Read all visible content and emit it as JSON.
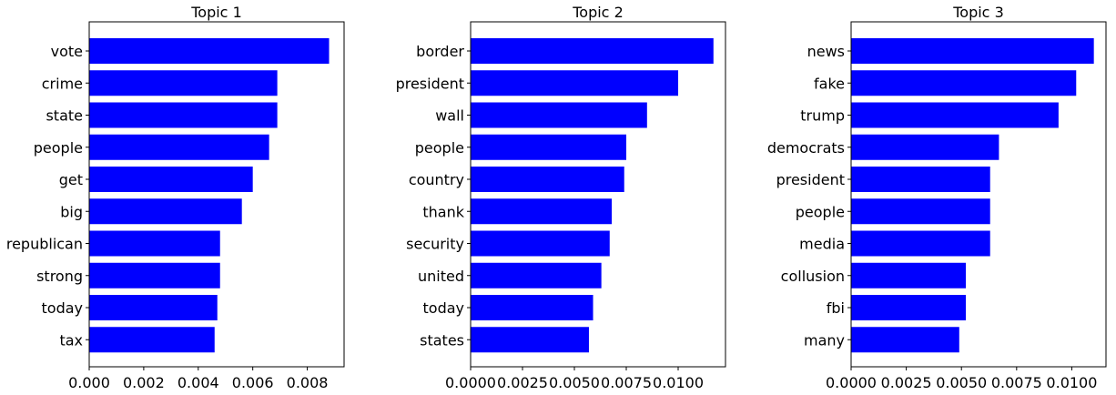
{
  "chart_data": [
    {
      "type": "bar",
      "orientation": "horizontal",
      "title": "Topic 1",
      "categories": [
        "vote",
        "crime",
        "state",
        "people",
        "get",
        "big",
        "republican",
        "strong",
        "today",
        "tax"
      ],
      "values": [
        0.0088,
        0.0069,
        0.0069,
        0.0066,
        0.006,
        0.0056,
        0.0048,
        0.0048,
        0.0047,
        0.0046
      ],
      "xlim": [
        0,
        0.00935
      ],
      "xticks": [
        0,
        0.002,
        0.004,
        0.006,
        0.008
      ],
      "xtick_labels": [
        "0.000",
        "0.002",
        "0.004",
        "0.006",
        "0.008"
      ],
      "bar_color": "#0000ff",
      "grid": false
    },
    {
      "type": "bar",
      "orientation": "horizontal",
      "title": "Topic 2",
      "categories": [
        "border",
        "president",
        "wall",
        "people",
        "country",
        "thank",
        "security",
        "united",
        "today",
        "states"
      ],
      "values": [
        0.0117,
        0.01,
        0.0085,
        0.0075,
        0.0074,
        0.0068,
        0.0067,
        0.0063,
        0.0059,
        0.0057
      ],
      "xlim": [
        0,
        0.01228
      ],
      "xticks": [
        0,
        0.0025,
        0.005,
        0.0075,
        0.01
      ],
      "xtick_labels": [
        "0.0000",
        "0.0025",
        "0.0050",
        "0.0075",
        "0.0100"
      ],
      "bar_color": "#0000ff",
      "grid": false
    },
    {
      "type": "bar",
      "orientation": "horizontal",
      "title": "Topic 3",
      "categories": [
        "news",
        "fake",
        "trump",
        "democrats",
        "president",
        "people",
        "media",
        "collusion",
        "fbi",
        "many"
      ],
      "values": [
        0.011,
        0.0102,
        0.0094,
        0.0067,
        0.0063,
        0.0063,
        0.0063,
        0.0052,
        0.0052,
        0.0049
      ],
      "xlim": [
        0,
        0.01155
      ],
      "xticks": [
        0,
        0.0025,
        0.005,
        0.0075,
        0.01
      ],
      "xtick_labels": [
        "0.0000",
        "0.0025",
        "0.0050",
        "0.0075",
        "0.0100"
      ],
      "bar_color": "#0000ff",
      "grid": false
    }
  ]
}
